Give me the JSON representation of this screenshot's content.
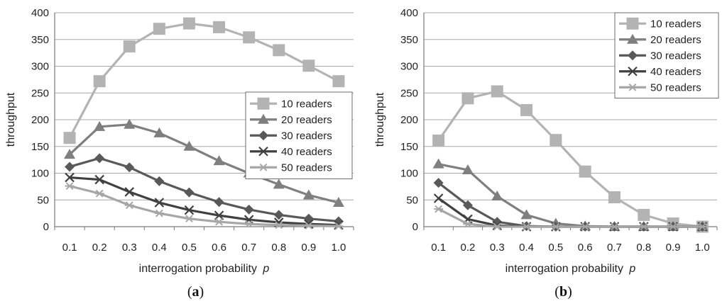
{
  "chart_data": [
    {
      "type": "line",
      "caption": {
        "pre": "(",
        "letter": "a",
        "post": ")"
      },
      "xlabel": "interrogation probability",
      "xlabel_var": "p",
      "ylabel": "throughput",
      "x": [
        "0.1",
        "0.2",
        "0.3",
        "0.4",
        "0.5",
        "0.6",
        "0.7",
        "0.8",
        "0.9",
        "1.0"
      ],
      "ylim": [
        0,
        400
      ],
      "yticks": [
        "0",
        "50",
        "100",
        "150",
        "200",
        "250",
        "300",
        "350",
        "400"
      ],
      "grid": true,
      "legend": "center-right",
      "series": [
        {
          "name": "10 readers",
          "marker": "square",
          "color": "#b3b3b3",
          "values": [
            166,
            272,
            337,
            370,
            380,
            373,
            354,
            330,
            301,
            272
          ]
        },
        {
          "name": "20 readers",
          "marker": "triangle",
          "color": "#7f7f7f",
          "values": [
            135,
            187,
            191,
            175,
            150,
            123,
            100,
            79,
            59,
            45
          ]
        },
        {
          "name": "30 readers",
          "marker": "diamond",
          "color": "#595959",
          "values": [
            112,
            128,
            111,
            85,
            64,
            46,
            32,
            22,
            15,
            10
          ]
        },
        {
          "name": "40 readers",
          "marker": "x",
          "color": "#404040",
          "values": [
            92,
            88,
            65,
            45,
            31,
            21,
            13,
            8,
            5,
            3
          ]
        },
        {
          "name": "50 readers",
          "marker": "asterisk",
          "color": "#a6a6a6",
          "values": [
            76,
            62,
            40,
            25,
            15,
            9,
            5,
            3,
            2,
            1
          ]
        }
      ]
    },
    {
      "type": "line",
      "caption": {
        "pre": "(",
        "letter": "b",
        "post": ")"
      },
      "xlabel": "interrogation probability",
      "xlabel_var": "p",
      "ylabel": "throughput",
      "x": [
        "0.1",
        "0.2",
        "0.3",
        "0.4",
        "0.5",
        "0.6",
        "0.7",
        "0.8",
        "0.9",
        "1.0"
      ],
      "ylim": [
        0,
        400
      ],
      "yticks": [
        "0",
        "50",
        "100",
        "150",
        "200",
        "250",
        "300",
        "350",
        "400"
      ],
      "grid": true,
      "legend": "top-right",
      "series": [
        {
          "name": "10 readers",
          "marker": "square",
          "color": "#b3b3b3",
          "values": [
            161,
            240,
            253,
            218,
            162,
            103,
            55,
            22,
            6,
            0
          ]
        },
        {
          "name": "20 readers",
          "marker": "triangle",
          "color": "#7f7f7f",
          "values": [
            117,
            106,
            57,
            22,
            6,
            1,
            0,
            0,
            0,
            0
          ]
        },
        {
          "name": "30 readers",
          "marker": "diamond",
          "color": "#595959",
          "values": [
            82,
            40,
            9,
            1,
            0,
            0,
            0,
            0,
            0,
            0
          ]
        },
        {
          "name": "40 readers",
          "marker": "x",
          "color": "#404040",
          "values": [
            53,
            14,
            2,
            0,
            0,
            0,
            0,
            0,
            0,
            0
          ]
        },
        {
          "name": "50 readers",
          "marker": "asterisk",
          "color": "#a6a6a6",
          "values": [
            33,
            5,
            0,
            0,
            0,
            0,
            0,
            0,
            0,
            0
          ]
        }
      ]
    }
  ]
}
